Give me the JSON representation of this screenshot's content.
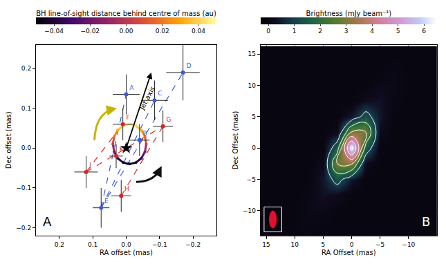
{
  "chart_data": [
    {
      "type": "scatter",
      "title": "A",
      "x_label": "RA offset (mas)",
      "y_label": "Dec offset (mas)",
      "xlim": [
        0.27,
        -0.27
      ],
      "ylim": [
        -0.22,
        0.26
      ],
      "xticks": [
        0.2,
        0.1,
        {
          "value": 0,
          "label": "0.0"
        },
        {
          "value": -0.1,
          "label": "−0.1"
        },
        {
          "value": -0.2,
          "label": "−0.2"
        }
      ],
      "yticks": [
        {
          "value": -0.2,
          "label": "−0.2"
        },
        {
          "value": -0.1,
          "label": "−0.1"
        },
        {
          "value": 0,
          "label": "0.0"
        },
        0.1,
        0.2
      ],
      "grid": false,
      "annotations": [
        "Jet axis"
      ],
      "center_of_mass": {
        "x": 0,
        "y": 0,
        "marker": "star"
      },
      "series": [
        {
          "color": "#3b5bdb",
          "marker": "circle",
          "line_style": "dash",
          "labels": [
            "A",
            "B",
            "C",
            "D",
            "E"
          ],
          "x": [
            0.0,
            -0.04,
            -0.085,
            -0.17,
            0.075
          ],
          "y": [
            0.135,
            0.02,
            0.12,
            0.19,
            -0.15
          ],
          "x_err": [
            0.04,
            0.03,
            0.04,
            0.05,
            0.025
          ],
          "y_err": [
            0.05,
            0.04,
            0.05,
            0.07,
            0.05
          ],
          "links": [
            [
              "E",
              "A"
            ],
            [
              "E",
              "C"
            ],
            [
              "E",
              "D"
            ]
          ]
        },
        {
          "color": "#d62728",
          "marker": "circle",
          "line_style": "dash",
          "labels": [
            "F",
            "G",
            "H",
            "J",
            "K"
          ],
          "x": [
            0.01,
            -0.11,
            0.015,
            0.12,
            0.03
          ],
          "y": [
            0.06,
            0.055,
            -0.12,
            -0.06,
            -0.02
          ],
          "x_err": [
            0.03,
            0.03,
            0.03,
            0.035,
            0.02
          ],
          "y_err": [
            0.04,
            0.04,
            0.04,
            0.04,
            0.03
          ],
          "links": [
            [
              "J",
              "F"
            ],
            [
              "H",
              "G"
            ],
            [
              "J",
              "G"
            ]
          ]
        }
      ],
      "orbit": {
        "x": [
          0.04,
          0.036,
          0.0254,
          0.0091,
          -0.01,
          -0.0291,
          -0.0454,
          -0.0562,
          -0.06,
          -0.0562,
          -0.0454,
          -0.0291,
          -0.01,
          0.0091,
          0.0254,
          0.036
        ],
        "y": [
          0.01,
          0.029,
          0.0454,
          0.0562,
          0.06,
          0.0562,
          0.0454,
          0.0291,
          0.01,
          -0.0091,
          -0.0254,
          -0.0362,
          -0.04,
          -0.0362,
          -0.0254,
          -0.0091
        ],
        "los": [
          0,
          0.017,
          0.032,
          0.042,
          0.045,
          0.042,
          0.032,
          0.017,
          0,
          -0.017,
          -0.032,
          -0.042,
          -0.045,
          -0.042,
          -0.032,
          -0.017
        ]
      },
      "colorbar": {
        "title": "BH line-of-sight distance behind centre of mass (au)",
        "range": [
          -0.05,
          0.05
        ],
        "ticks": [
          {
            "value": -0.04,
            "label": "−0.04"
          },
          {
            "value": -0.02,
            "label": "−0.02"
          },
          {
            "value": 0,
            "label": "0.00"
          },
          0.02,
          0.04
        ]
      }
    },
    {
      "type": "heatmap",
      "title": "B",
      "x_label": "RA Offset (mas)",
      "y_label": "Dec Offset (mas)",
      "xlim": [
        16,
        -15
      ],
      "ylim": [
        -14,
        16.5
      ],
      "xticks": [
        15,
        10,
        5,
        0,
        {
          "value": -5,
          "label": "−5"
        },
        {
          "value": -10,
          "label": "−10"
        }
      ],
      "yticks": [
        {
          "value": -10,
          "label": "−10"
        },
        {
          "value": -5,
          "label": "−5"
        },
        0,
        5,
        10,
        15
      ],
      "grid": true,
      "x": [
        -15,
        -12.5,
        -10,
        -7.5,
        -5,
        -2.5,
        0,
        2.5,
        5,
        7.5,
        10,
        12.5,
        15
      ],
      "y": [
        -15,
        -12.5,
        -10,
        -7.5,
        -5,
        -2.5,
        0,
        2.5,
        5,
        7.5,
        10,
        12.5,
        15
      ],
      "z": [
        [
          0,
          0,
          0,
          0,
          0,
          0,
          0,
          0,
          0,
          0,
          0,
          0,
          0
        ],
        [
          0,
          0,
          0,
          0,
          0,
          0,
          0,
          0,
          0,
          0.09,
          0,
          0,
          0
        ],
        [
          0,
          0,
          0,
          0,
          0,
          0,
          0,
          0,
          0.15,
          0.11,
          0,
          0,
          0
        ],
        [
          0,
          0,
          0,
          0,
          0,
          0,
          0,
          0.23,
          0.33,
          0.06,
          0,
          0,
          0
        ],
        [
          0,
          0,
          0,
          0,
          0,
          0,
          0.4,
          1.35,
          0.4,
          0,
          0,
          0,
          0
        ],
        [
          0,
          0,
          0,
          0,
          0,
          0.2,
          3.1,
          3.0,
          0.2,
          0,
          0,
          0,
          0
        ],
        [
          0,
          0,
          0,
          0,
          0,
          1.6,
          6.5,
          1.6,
          0,
          0,
          0,
          0,
          0
        ],
        [
          0,
          0,
          0,
          0,
          0.2,
          3.0,
          3.1,
          0.2,
          0,
          0,
          0,
          0,
          0
        ],
        [
          0,
          0,
          0,
          0,
          0.4,
          1.35,
          0.4,
          0,
          0,
          0,
          0,
          0,
          0
        ],
        [
          0,
          0,
          0,
          0.06,
          0.33,
          0.23,
          0,
          0,
          0,
          0,
          0,
          0,
          0
        ],
        [
          0,
          0,
          0,
          0.11,
          0.15,
          0,
          0,
          0,
          0,
          0,
          0,
          0,
          0
        ],
        [
          0,
          0,
          0,
          0.09,
          0,
          0,
          0,
          0,
          0,
          0,
          0,
          0,
          0
        ],
        [
          0,
          0,
          0,
          0,
          0,
          0,
          0,
          0,
          0,
          0,
          0,
          0,
          0
        ]
      ],
      "colorbar": {
        "title": "Brightness (mJy beam⁻¹)",
        "range": [
          -0.3,
          6.5
        ],
        "ticks": [
          0,
          1,
          2,
          3,
          4,
          5,
          6
        ]
      }
    }
  ]
}
